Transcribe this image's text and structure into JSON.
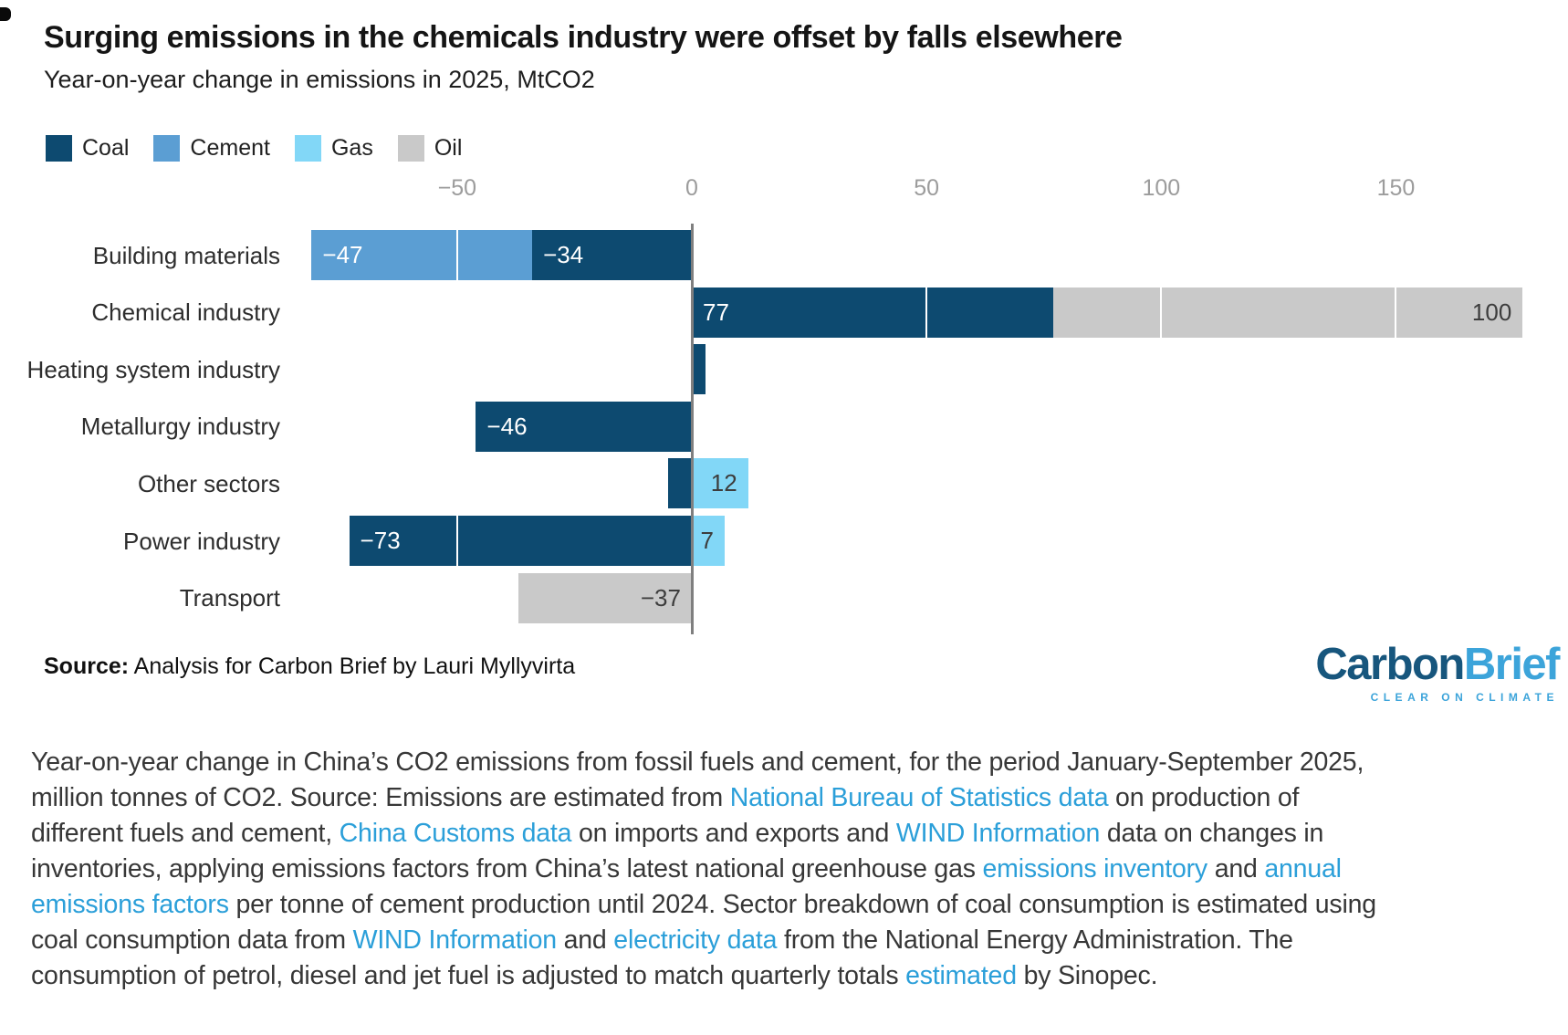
{
  "header": {
    "title": "Surging emissions in the chemicals industry were offset by falls elsewhere",
    "subtitle": "Year-on-year change in emissions in 2025, MtCO2"
  },
  "legend": [
    {
      "label": "Coal",
      "color": "#0d4a70"
    },
    {
      "label": "Cement",
      "color": "#5b9ed3"
    },
    {
      "label": "Gas",
      "color": "#82d7f7"
    },
    {
      "label": "Oil",
      "color": "#c9c9c9"
    }
  ],
  "chart_data": {
    "type": "bar",
    "orientation": "horizontal",
    "title": "Surging emissions in the chemicals industry were offset by falls elsewhere",
    "subtitle": "Year-on-year change in emissions in 2025, MtCO2",
    "unit": "MtCO2",
    "x_ticks": [
      -50,
      0,
      50,
      100,
      150
    ],
    "x_tick_labels": [
      "−50",
      "0",
      "50",
      "100",
      "150"
    ],
    "x_range": [
      -81,
      178
    ],
    "grid": "vertical-white-over-bars",
    "legend_position": "top-left",
    "categories": [
      "Building materials",
      "Chemical industry",
      "Heating system industry",
      "Metallurgy industry",
      "Other sectors",
      "Power industry",
      "Transport"
    ],
    "series": [
      {
        "name": "Coal",
        "values": [
          -34,
          77,
          3,
          -46,
          -5,
          -73,
          null
        ]
      },
      {
        "name": "Cement",
        "values": [
          -47,
          null,
          null,
          null,
          null,
          null,
          null
        ]
      },
      {
        "name": "Gas",
        "values": [
          null,
          null,
          null,
          null,
          12,
          7,
          null
        ]
      },
      {
        "name": "Oil",
        "values": [
          null,
          100,
          null,
          null,
          null,
          null,
          -37
        ]
      }
    ],
    "rows": [
      {
        "category": "Building materials",
        "segments": [
          {
            "series": "Cement",
            "value": -47,
            "label": "−47",
            "label_color": "light",
            "label_align": "left"
          },
          {
            "series": "Coal",
            "value": -34,
            "label": "−34",
            "label_color": "light",
            "label_align": "left"
          }
        ]
      },
      {
        "category": "Chemical industry",
        "segments": [
          {
            "series": "Coal",
            "value": 77,
            "label": "77",
            "label_color": "light",
            "label_align": "left"
          },
          {
            "series": "Oil",
            "value": 100,
            "label": "100",
            "label_color": "dark",
            "label_align": "right"
          }
        ]
      },
      {
        "category": "Heating system industry",
        "segments": [
          {
            "series": "Coal",
            "value": 3,
            "label": "",
            "label_color": "dark",
            "label_align": "left"
          }
        ]
      },
      {
        "category": "Metallurgy industry",
        "segments": [
          {
            "series": "Coal",
            "value": -46,
            "label": "−46",
            "label_color": "light",
            "label_align": "left"
          }
        ]
      },
      {
        "category": "Other sectors",
        "segments": [
          {
            "series": "Coal",
            "value": -5,
            "label": "",
            "label_color": "light",
            "label_align": "left"
          },
          {
            "series": "Gas",
            "value": 12,
            "label": "12",
            "label_color": "dark",
            "label_align": "right"
          }
        ]
      },
      {
        "category": "Power industry",
        "segments": [
          {
            "series": "Coal",
            "value": -73,
            "label": "−73",
            "label_color": "light",
            "label_align": "left"
          },
          {
            "series": "Gas",
            "value": 7,
            "label": "7",
            "label_color": "dark",
            "label_align": "right"
          }
        ]
      },
      {
        "category": "Transport",
        "segments": [
          {
            "series": "Oil",
            "value": -37,
            "label": "−37",
            "label_color": "dark",
            "label_align": "right"
          }
        ]
      }
    ]
  },
  "source": {
    "label": "Source:",
    "text": " Analysis for Carbon Brief by Lauri Myllyvirta"
  },
  "logo": {
    "part1": "Carbon",
    "part2": "Brief",
    "tagline": "CLEAR ON CLIMATE"
  },
  "caption": {
    "parts": [
      {
        "text": "Year-on-year change in China’s CO2 emissions from fossil fuels and cement, for the period January-September 2025, million tonnes of CO2. Source: Emissions are estimated from "
      },
      {
        "text": "National Bureau of Statistics data",
        "link": true
      },
      {
        "text": " on production of different fuels and cement, "
      },
      {
        "text": "China Customs data",
        "link": true
      },
      {
        "text": " on imports and exports and "
      },
      {
        "text": "WIND Information",
        "link": true
      },
      {
        "text": " data on changes in inventories, applying emissions factors from China’s latest national greenhouse gas "
      },
      {
        "text": "emissions inventory",
        "link": true
      },
      {
        "text": " and "
      },
      {
        "text": "annual emissions factors",
        "link": true
      },
      {
        "text": " per tonne of cement production until 2024. Sector breakdown of coal consumption is estimated using coal consumption data from "
      },
      {
        "text": "WIND Information",
        "link": true
      },
      {
        "text": " and "
      },
      {
        "text": "electricity data",
        "link": true
      },
      {
        "text": " from the National Energy Administration. The consumption of petrol, diesel and jet fuel is adjusted to match quarterly totals "
      },
      {
        "text": "estimated",
        "link": true
      },
      {
        "text": " by Sinopec."
      }
    ]
  }
}
